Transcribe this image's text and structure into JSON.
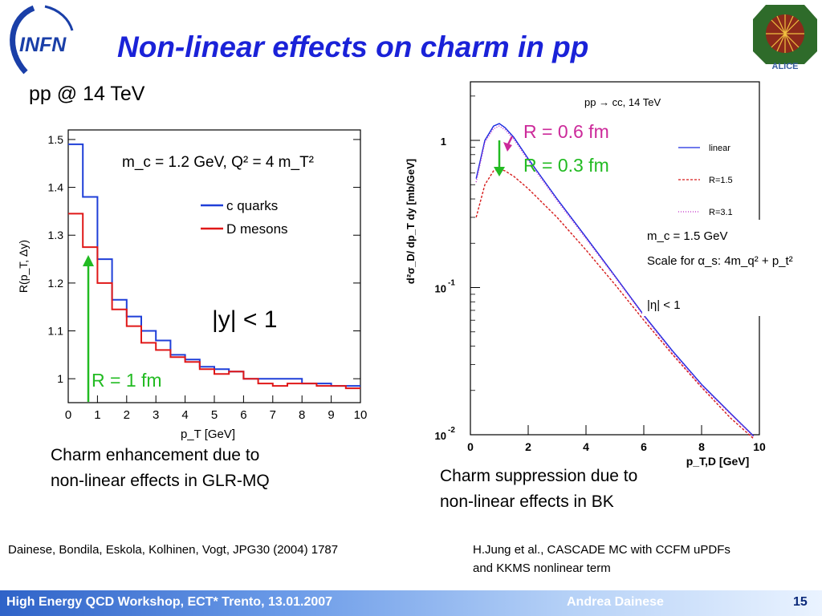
{
  "slide": {
    "title": "Non-linear effects on charm in pp",
    "subtitle": "pp @ 14 TeV",
    "logo_left": "INFN",
    "logo_right": "ALICE",
    "left_caption_line1": "Charm enhancement due to",
    "left_caption_line2": "non-linear effects in GLR-MQ",
    "right_caption_line1": "Charm suppression due to",
    "right_caption_line2": "non-linear effects in BK",
    "ref_left": "Dainese, Bondila, Eskola, Kolhinen, Vogt, JPG30 (2004) 1787",
    "ref_right_line1": "H.Jung et al., CASCADE MC with CCFM uPDFs",
    "ref_right_line2": "and KKMS nonlinear term",
    "footer": "High Energy QCD Workshop, ECT* Trento, 13.01.2007",
    "author": "Andrea Dainese",
    "page_number": "15",
    "colors": {
      "title": "#1a22d8",
      "footer_bar": "#2f63c8",
      "arrow_green": "#22bb22",
      "arrow_magenta": "#cc2a9a"
    }
  },
  "chart_data": [
    {
      "type": "line",
      "style": "histogram",
      "xlabel": "p_T [GeV]",
      "ylabel": "R(p_T, Δy)",
      "xlim": [
        0,
        10
      ],
      "ylim": [
        0.95,
        1.52
      ],
      "x_ticks": [
        "0",
        "1",
        "2",
        "3",
        "4",
        "5",
        "6",
        "7",
        "8",
        "9",
        "10"
      ],
      "y_ticks": [
        "1",
        "1.1",
        "1.2",
        "1.3",
        "1.4",
        "1.5"
      ],
      "annotation": "m_c = 1.2 GeV, Q² = 4 m_T²",
      "region_label": "|y| < 1",
      "arrow_label": "R = 1 fm",
      "legend_position": "right",
      "bin_edges": [
        0,
        0.5,
        1,
        1.5,
        2,
        2.5,
        3,
        3.5,
        4,
        4.5,
        5,
        5.5,
        6,
        6.5,
        7,
        7.5,
        8,
        8.5,
        9,
        9.5,
        10
      ],
      "series": [
        {
          "name": "c quarks",
          "color": "#1f3fd8",
          "values": [
            1.49,
            1.38,
            1.25,
            1.165,
            1.13,
            1.1,
            1.08,
            1.05,
            1.04,
            1.025,
            1.02,
            1.015,
            1.0,
            1.0,
            1.0,
            1.0,
            0.99,
            0.99,
            0.985,
            0.985
          ]
        },
        {
          "name": "D mesons",
          "color": "#e01818",
          "values": [
            1.345,
            1.275,
            1.2,
            1.145,
            1.11,
            1.075,
            1.06,
            1.045,
            1.035,
            1.02,
            1.01,
            1.015,
            1.0,
            0.99,
            0.985,
            0.99,
            0.99,
            0.985,
            0.985,
            0.98
          ]
        }
      ]
    },
    {
      "type": "line",
      "xlabel": "p_T,D [GeV]",
      "ylabel": "d²σ_D/ dp_T dy [mb/GeV]",
      "xlim": [
        0,
        10
      ],
      "ylim": [
        0.01,
        2.5
      ],
      "log_y": true,
      "x_ticks": [
        "0",
        "2",
        "4",
        "6",
        "8",
        "10"
      ],
      "y_ticks": [
        "1",
        "10^-1",
        "10^-2"
      ],
      "annotation": "pp → cc, 14 TeV",
      "param_lines": [
        "m_c = 1.5 GeV",
        "Scale for α_s: 4m_q² + p_t²",
        "|η| < 1"
      ],
      "arrow_labels": [
        "R = 0.6 fm",
        "R = 0.3 fm"
      ],
      "legend_position": "right",
      "x": [
        0.2,
        0.5,
        0.8,
        1.0,
        1.2,
        1.5,
        2,
        3,
        4,
        5,
        6,
        7,
        8,
        9,
        9.8
      ],
      "series": [
        {
          "name": "linear",
          "color": "#1a2ae0",
          "values": [
            0.55,
            1.0,
            1.25,
            1.3,
            1.22,
            1.05,
            0.75,
            0.4,
            0.22,
            0.12,
            0.065,
            0.037,
            0.022,
            0.014,
            0.0098
          ]
        },
        {
          "name": "R=1.5",
          "color": "#d61a1a",
          "values": [
            0.3,
            0.5,
            0.62,
            0.64,
            0.62,
            0.57,
            0.47,
            0.3,
            0.18,
            0.105,
            0.06,
            0.035,
            0.021,
            0.013,
            0.0094
          ]
        },
        {
          "name": "R=3.1",
          "color": "#c02ac8",
          "values": [
            0.52,
            0.97,
            1.2,
            1.25,
            1.18,
            1.02,
            0.73,
            0.39,
            0.215,
            0.118,
            0.064,
            0.036,
            0.0215,
            0.0138,
            0.0097
          ]
        }
      ]
    }
  ]
}
